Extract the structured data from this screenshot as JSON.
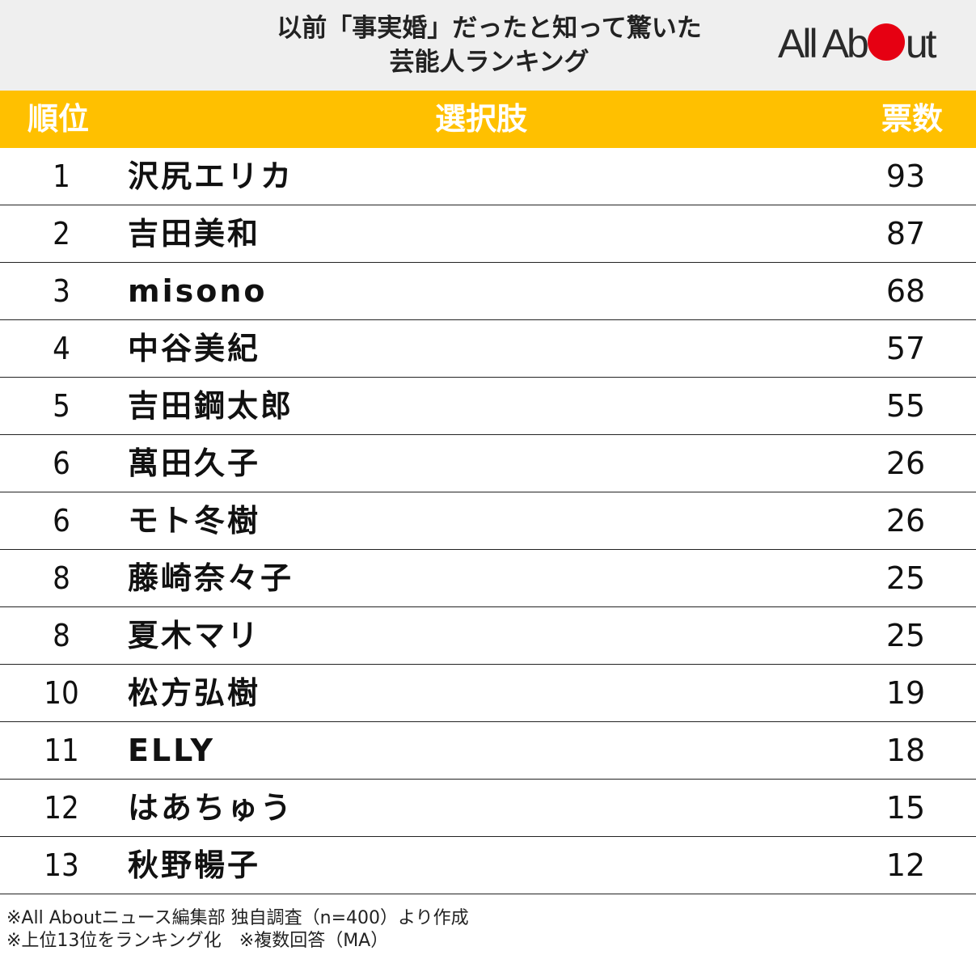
{
  "header": {
    "title_line1": "以前「事実婚」だったと知って驚いた",
    "title_line2": "芸能人ランキング",
    "logo_before": "All Ab",
    "logo_after": "ut"
  },
  "table": {
    "col_rank": "順位",
    "col_choice": "選択肢",
    "col_votes": "票数",
    "rows": [
      {
        "rank": "1",
        "name": "沢尻エリカ",
        "votes": "93"
      },
      {
        "rank": "2",
        "name": "吉田美和",
        "votes": "87"
      },
      {
        "rank": "3",
        "name": "misono",
        "votes": "68"
      },
      {
        "rank": "4",
        "name": "中谷美紀",
        "votes": "57"
      },
      {
        "rank": "5",
        "name": "吉田鋼太郎",
        "votes": "55"
      },
      {
        "rank": "6",
        "name": "萬田久子",
        "votes": "26"
      },
      {
        "rank": "6",
        "name": "モト冬樹",
        "votes": "26"
      },
      {
        "rank": "8",
        "name": "藤崎奈々子",
        "votes": "25"
      },
      {
        "rank": "8",
        "name": "夏木マリ",
        "votes": "25"
      },
      {
        "rank": "10",
        "name": "松方弘樹",
        "votes": "19"
      },
      {
        "rank": "11",
        "name": "ELLY",
        "votes": "18"
      },
      {
        "rank": "12",
        "name": "はあちゅう",
        "votes": "15"
      },
      {
        "rank": "13",
        "name": "秋野暢子",
        "votes": "12"
      }
    ]
  },
  "footnotes": {
    "line1": "※All Aboutニュース編集部 独自調査（n=400）より作成",
    "line2": "※上位13位をランキング化　※複数回答（MA）"
  },
  "colors": {
    "header_band": "#ffc000",
    "logo_dot": "#e60012"
  }
}
